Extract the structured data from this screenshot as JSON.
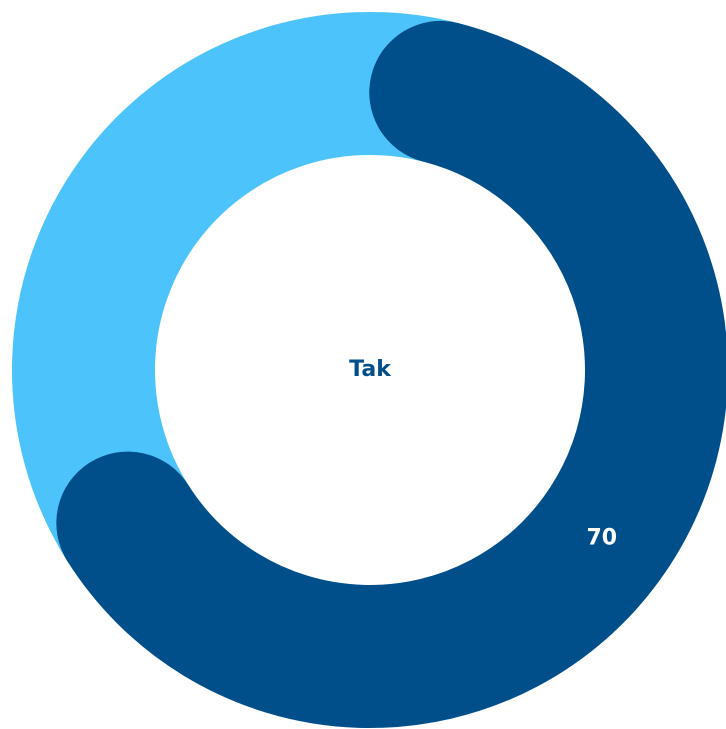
{
  "chart_data": {
    "type": "donut",
    "categories": [
      "Tak",
      null
    ],
    "values": [
      70,
      30
    ],
    "colors": [
      "#004f8b",
      "#4cc3fa"
    ]
  }
}
